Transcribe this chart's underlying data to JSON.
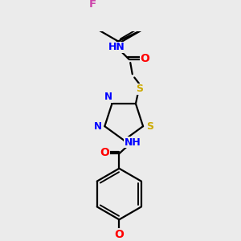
{
  "bg_color": "#ebebeb",
  "bond_color": "#000000",
  "atom_colors": {
    "N": "#0000ff",
    "O": "#ff0000",
    "S": "#ccaa00",
    "F": "#cc44aa",
    "C": "#000000"
  },
  "lw": 1.6,
  "fs": 9.0,
  "r6": 0.52,
  "r5": 0.42
}
